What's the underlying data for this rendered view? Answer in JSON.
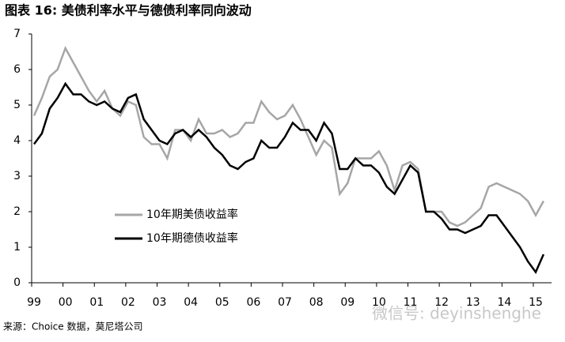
{
  "chart_data": {
    "type": "line",
    "title": "图表 16:  美债利率水平与德债利率同向波动",
    "source": "来源：Choice 数据，莫尼塔公司",
    "watermark": "微信号: deyinshenghe",
    "categories": [
      "99",
      null,
      null,
      null,
      "00",
      null,
      null,
      null,
      "01",
      null,
      null,
      null,
      "02",
      null,
      null,
      null,
      "03",
      null,
      null,
      null,
      "04",
      null,
      null,
      null,
      "05",
      null,
      null,
      null,
      "06",
      null,
      null,
      null,
      "07",
      null,
      null,
      null,
      "08",
      null,
      null,
      null,
      "09",
      null,
      null,
      null,
      "10",
      null,
      null,
      null,
      "11",
      null,
      null,
      null,
      "12",
      null,
      null,
      null,
      "13",
      null,
      null,
      null,
      "14",
      null,
      null,
      null,
      "15",
      null
    ],
    "series": [
      {
        "name": "10年期美债收益率",
        "color": "#a6a6a6",
        "values": [
          4.7,
          5.2,
          5.8,
          6.0,
          6.6,
          6.2,
          5.8,
          5.4,
          5.1,
          5.4,
          4.9,
          4.7,
          5.1,
          5.0,
          4.1,
          3.9,
          3.9,
          3.5,
          4.3,
          4.3,
          4.0,
          4.6,
          4.2,
          4.2,
          4.3,
          4.1,
          4.2,
          4.5,
          4.5,
          5.1,
          4.8,
          4.6,
          4.7,
          5.0,
          4.6,
          4.1,
          3.6,
          4.0,
          3.8,
          2.5,
          2.8,
          3.5,
          3.5,
          3.5,
          3.7,
          3.3,
          2.6,
          3.3,
          3.4,
          3.2,
          2.0,
          2.0,
          2.0,
          1.7,
          1.6,
          1.7,
          1.9,
          2.1,
          2.7,
          2.8,
          2.7,
          2.6,
          2.5,
          2.3,
          1.9,
          2.3
        ]
      },
      {
        "name": "10年期德债收益率",
        "color": "#000000",
        "values": [
          3.9,
          4.2,
          4.9,
          5.2,
          5.6,
          5.3,
          5.3,
          5.1,
          5.0,
          5.1,
          4.9,
          4.8,
          5.2,
          5.3,
          4.6,
          4.3,
          4.0,
          3.9,
          4.2,
          4.3,
          4.1,
          4.3,
          4.1,
          3.8,
          3.6,
          3.3,
          3.2,
          3.4,
          3.5,
          4.0,
          3.8,
          3.8,
          4.1,
          4.5,
          4.3,
          4.3,
          4.0,
          4.5,
          4.2,
          3.2,
          3.2,
          3.5,
          3.3,
          3.3,
          3.1,
          2.7,
          2.5,
          2.9,
          3.3,
          3.1,
          2.0,
          2.0,
          1.8,
          1.5,
          1.5,
          1.4,
          1.5,
          1.6,
          1.9,
          1.9,
          1.6,
          1.3,
          1.0,
          0.6,
          0.3,
          0.8
        ]
      }
    ],
    "ylim": [
      0,
      7
    ],
    "yticks": [
      0,
      1,
      2,
      3,
      4,
      5,
      6,
      7
    ]
  }
}
